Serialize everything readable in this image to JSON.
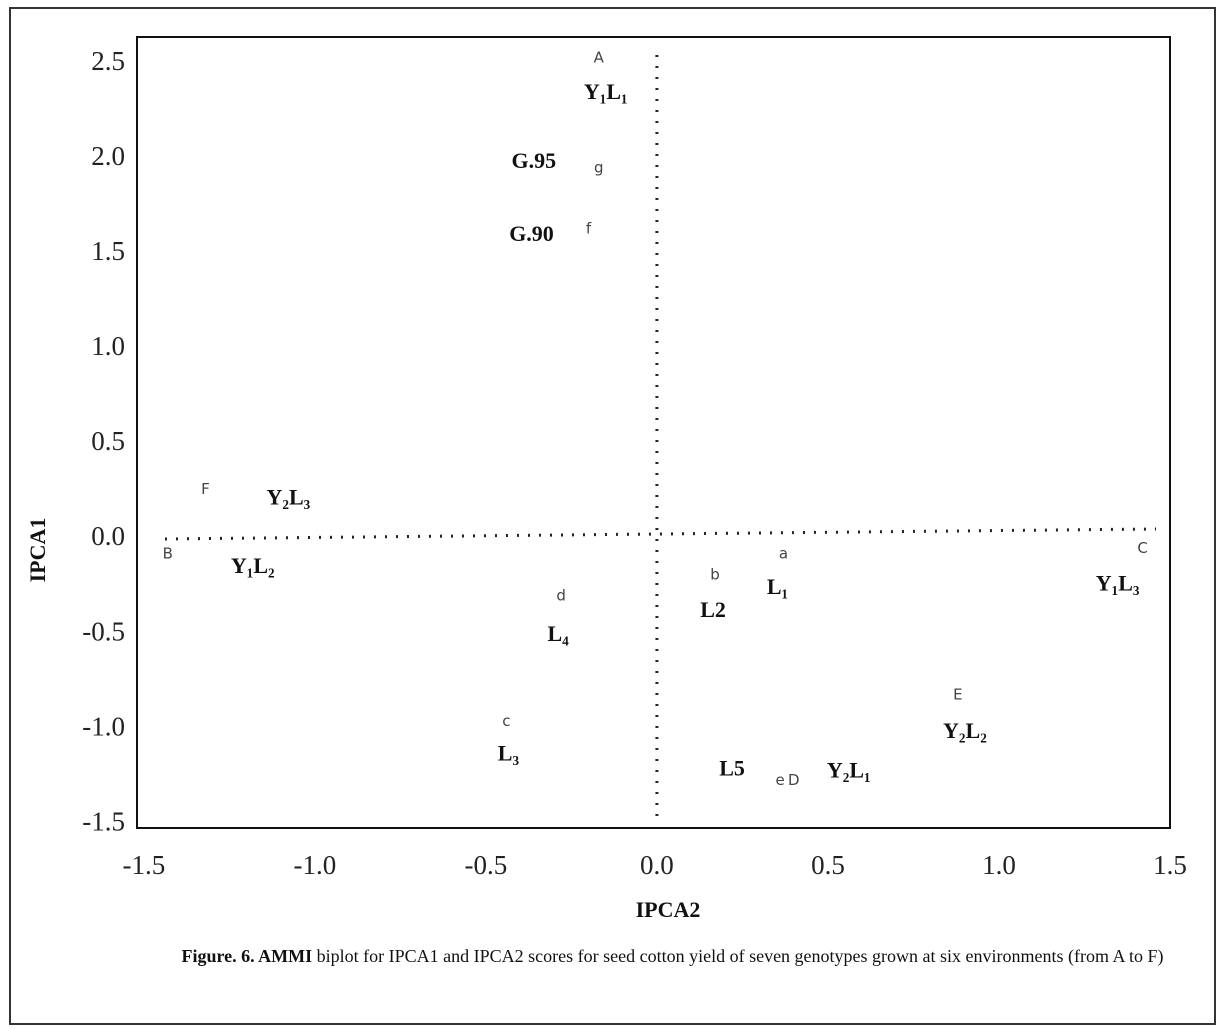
{
  "chart_data": {
    "type": "scatter",
    "x_label": "IPCA2",
    "y_label": "IPCA1",
    "xlim": [
      -1.52,
      1.5
    ],
    "ylim": [
      -1.52,
      2.64
    ],
    "xticks": [
      {
        "value": -1.5,
        "label": "-1.5"
      },
      {
        "value": -1.0,
        "label": "-1.0"
      },
      {
        "value": -0.5,
        "label": "-0.5"
      },
      {
        "value": 0.0,
        "label": "0.0"
      },
      {
        "value": 0.5,
        "label": "0.5"
      },
      {
        "value": 1.0,
        "label": "1.0"
      },
      {
        "value": 1.5,
        "label": "1.5"
      }
    ],
    "yticks": [
      {
        "value": -1.5,
        "label": "-1.5"
      },
      {
        "value": -1.0,
        "label": "-1.0"
      },
      {
        "value": -0.5,
        "label": "-0.5"
      },
      {
        "value": 0.0,
        "label": "0.0"
      },
      {
        "value": 0.5,
        "label": "0.5"
      },
      {
        "value": 1.0,
        "label": "1.0"
      },
      {
        "value": 1.5,
        "label": "1.5"
      },
      {
        "value": 2.0,
        "label": "2.0"
      },
      {
        "value": 2.5,
        "label": "2.5"
      }
    ],
    "series": [
      {
        "color": "#444444",
        "markers": [
          "A",
          "g",
          "f",
          "F",
          "B",
          "d",
          "c",
          "b",
          "a",
          "C",
          "E",
          "e",
          "D"
        ],
        "labels": [
          "Y₁L₁",
          "G.95",
          "G.90",
          "Y₂L₃",
          "Y₁L₂",
          "L₄",
          "L₃",
          "L2",
          "L₁",
          "Y₁L₃",
          "Y₂L₂",
          "L5",
          "Y₂L₁"
        ],
        "x": [
          -0.17,
          -0.17,
          -0.2,
          -1.32,
          -1.43,
          -0.28,
          -0.44,
          0.17,
          0.37,
          1.42,
          0.88,
          0.36,
          0.4
        ],
        "values": [
          2.53,
          1.95,
          1.63,
          0.26,
          -0.08,
          -0.3,
          -0.96,
          -0.19,
          -0.08,
          -0.05,
          -0.82,
          -1.27,
          -1.27
        ]
      }
    ],
    "caption": {
      "bold": "Figure. 6. AMMI",
      "text": "biplot for IPCA1 and IPCA2 scores for seed cotton yield of seven genotypes grown at six environments (from A to F)"
    }
  }
}
